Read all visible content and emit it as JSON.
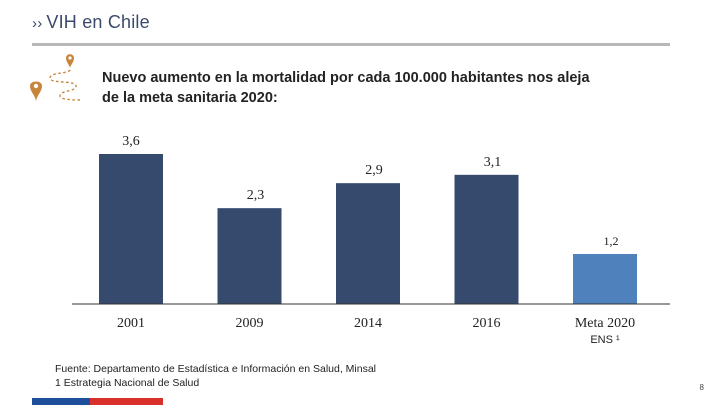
{
  "header": {
    "chevron": "››",
    "title": "VIH en Chile"
  },
  "headline": {
    "line1": "Nuevo aumento en la mortalidad por cada 100.000 habitantes nos aleja",
    "line2": "de la meta sanitaria 2020:"
  },
  "icons": {
    "route": "route-pin-icon",
    "accent": "#c8853a"
  },
  "colors": {
    "bar_main": "#364a6e",
    "bar_target": "#4f81bd",
    "axis": "#333333"
  },
  "chart_data": {
    "type": "bar",
    "title": "",
    "xlabel": "",
    "ylabel": "",
    "ylim": [
      0,
      3.6
    ],
    "categories": [
      "2001",
      "2009",
      "2014",
      "2016",
      "Meta 2020"
    ],
    "values": [
      3.6,
      2.3,
      2.9,
      3.1,
      1.2
    ],
    "value_labels": [
      "3,6",
      "2,3",
      "2,9",
      "3,1",
      "1,2"
    ],
    "highlight_index": 4,
    "category_note": {
      "index": 4,
      "text": "ENS ¹"
    }
  },
  "footer": {
    "source_line1": "Fuente: Departamento de Estadística e Información en Salud, Minsal",
    "source_line2": "1 Estrategia Nacional de Salud",
    "page_number": "8"
  }
}
